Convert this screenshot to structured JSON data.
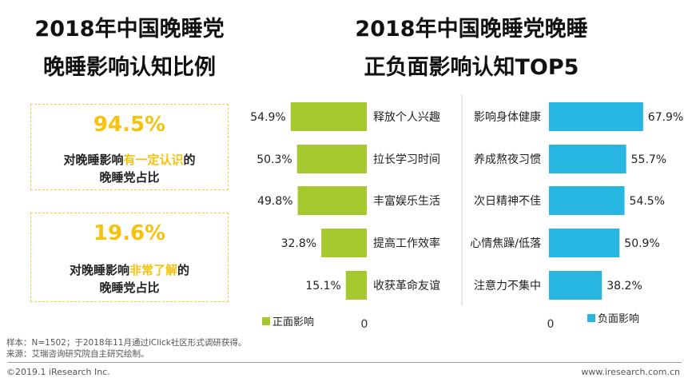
{
  "titles": {
    "left_line1": "2018年中国晚睡党",
    "left_line2": "晚睡影响认知比例",
    "right_line1": "2018年中国晚睡党晚睡",
    "right_line2": "正负面影响认知TOP5"
  },
  "cards": [
    {
      "pct": "94.5%",
      "pre": "对晚睡影响",
      "highlight": "有一定认识",
      "post": "的",
      "line2": "晚睡党占比"
    },
    {
      "pct": "19.6%",
      "pre": "对晚睡影响",
      "highlight": "非常了解",
      "post": "的",
      "line2": "晚睡党占比"
    }
  ],
  "colors": {
    "positive": "#a5c82e",
    "negative": "#27b5e2",
    "highlight": "#f7c20b"
  },
  "chart_data": [
    {
      "type": "bar",
      "orientation": "horizontal",
      "direction": "right-to-left",
      "series_name": "正面影响",
      "categories": [
        "释放个人兴趣",
        "拉长学习时间",
        "丰富娱乐生活",
        "提高工作效率",
        "收获革命友谊"
      ],
      "values": [
        54.9,
        50.3,
        49.8,
        32.8,
        15.1
      ],
      "value_labels": [
        "54.9%",
        "50.3%",
        "49.8%",
        "32.8%",
        "15.1%"
      ],
      "axis_zero_label": "0",
      "legend": "bottom-left"
    },
    {
      "type": "bar",
      "orientation": "horizontal",
      "direction": "left-to-right",
      "series_name": "负面影响",
      "categories": [
        "影响身体健康",
        "养成熬夜习惯",
        "次日精神不佳",
        "心情焦躁/低落",
        "注意力不集中"
      ],
      "values": [
        67.9,
        55.7,
        54.5,
        50.9,
        38.2
      ],
      "value_labels": [
        "67.9%",
        "55.7%",
        "54.5%",
        "50.9%",
        "38.2%"
      ],
      "axis_zero_label": "0",
      "legend": "bottom-right"
    }
  ],
  "footer": {
    "sample": "样本：N=1502；于2018年11月通过iClick社区形式调研获得。",
    "source": "来源：艾瑞咨询研究院自主研究绘制。",
    "copyright": "©2019.1 iResearch Inc.",
    "website": "www.iresearch.com.cn"
  }
}
